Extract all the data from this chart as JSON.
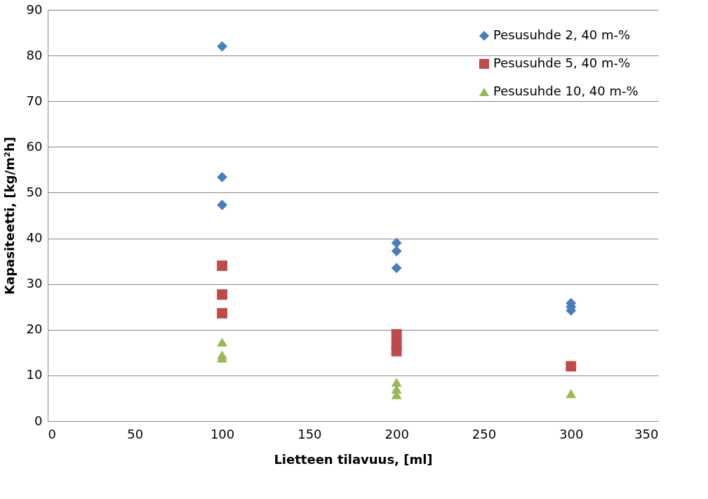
{
  "chart_data": {
    "type": "scatter",
    "xlabel": "Lietteen tilavuus, [ml]",
    "ylabel": "Kapasiteetti, [kg/m²h]",
    "xlim": [
      0,
      350
    ],
    "xticks": [
      0,
      50,
      100,
      150,
      200,
      250,
      300,
      350
    ],
    "ylim": [
      0,
      90
    ],
    "yticks": [
      0,
      10,
      20,
      30,
      40,
      50,
      60,
      70,
      80,
      90
    ],
    "grid": "y",
    "legend": "top right",
    "series": [
      {
        "name": "Pesusuhde 2, 40 m-%",
        "color": "#4a7ebb",
        "marker": "diamond",
        "x": [
          100,
          100,
          100,
          200,
          200,
          200,
          300,
          300,
          300
        ],
        "values": [
          82,
          53.4,
          47.3,
          39,
          37.2,
          33.5,
          25.8,
          25,
          24.2
        ]
      },
      {
        "name": "Pesusuhde 5, 40 m-%",
        "color": "#be4b48",
        "marker": "square",
        "x": [
          100,
          100,
          100,
          200,
          200,
          200,
          300
        ],
        "values": [
          34,
          27.7,
          23.6,
          19,
          17,
          15.3,
          12
        ]
      },
      {
        "name": "Pesusuhde 10, 40 m-%",
        "color": "#98b954",
        "marker": "triangle",
        "x": [
          100,
          100,
          100,
          200,
          200,
          200,
          300
        ],
        "values": [
          17.3,
          14.5,
          13.8,
          8.5,
          7,
          5.8,
          6
        ]
      }
    ]
  }
}
